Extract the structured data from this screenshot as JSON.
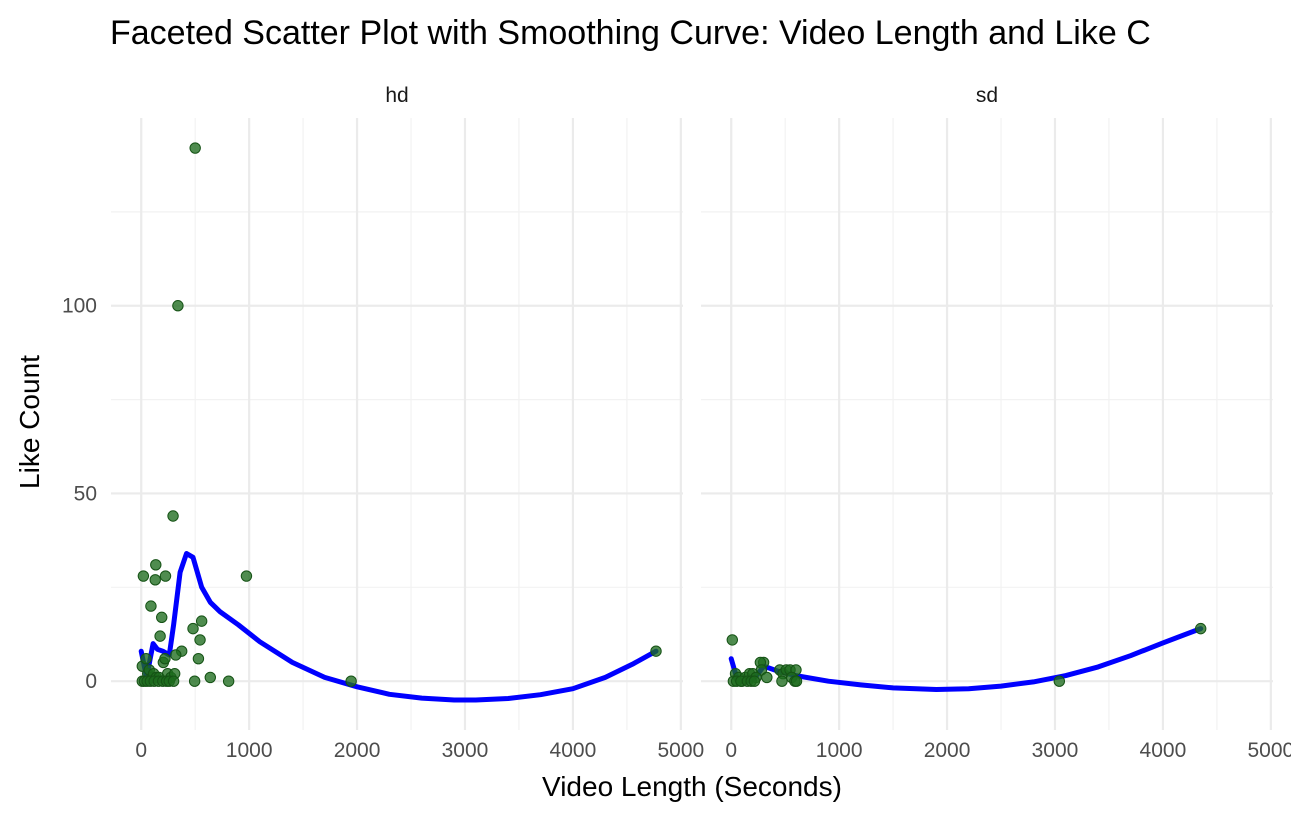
{
  "chart_data": {
    "type": "scatter",
    "title": "Faceted Scatter Plot with Smoothing Curve: Video Length and Like C",
    "xlabel": "Video Length (Seconds)",
    "ylabel": "Like Count",
    "xlim": [
      -280,
      5020
    ],
    "ylim": [
      -13,
      150
    ],
    "x_ticks": [
      0,
      1000,
      2000,
      3000,
      4000,
      5000
    ],
    "x_tick_labels": [
      "0",
      "1000",
      "2000",
      "3000",
      "4000",
      "5000"
    ],
    "y_ticks": [
      0,
      50,
      100
    ],
    "y_tick_labels": [
      "0",
      "50",
      "100"
    ],
    "grid": true,
    "colors": {
      "points": "#1e6b1e",
      "smooth": "#0000ff"
    },
    "facets": [
      {
        "label": "hd",
        "points": [
          [
            500,
            142
          ],
          [
            340,
            100
          ],
          [
            295,
            44
          ],
          [
            975,
            28
          ],
          [
            20,
            28
          ],
          [
            135,
            31
          ],
          [
            130,
            27
          ],
          [
            225,
            28
          ],
          [
            90,
            20
          ],
          [
            190,
            17
          ],
          [
            480,
            14
          ],
          [
            560,
            16
          ],
          [
            175,
            12
          ],
          [
            545,
            11
          ],
          [
            375,
            8
          ],
          [
            4770,
            8
          ],
          [
            10,
            4
          ],
          [
            45,
            6
          ],
          [
            60,
            2
          ],
          [
            75,
            3
          ],
          [
            100,
            1
          ],
          [
            115,
            2
          ],
          [
            140,
            1
          ],
          [
            165,
            1
          ],
          [
            205,
            5
          ],
          [
            220,
            6
          ],
          [
            245,
            2
          ],
          [
            275,
            1
          ],
          [
            310,
            2
          ],
          [
            320,
            7
          ],
          [
            530,
            6
          ],
          [
            640,
            1
          ],
          [
            10,
            0
          ],
          [
            30,
            0
          ],
          [
            55,
            0
          ],
          [
            85,
            0
          ],
          [
            120,
            0
          ],
          [
            160,
            0
          ],
          [
            200,
            0
          ],
          [
            235,
            0
          ],
          [
            260,
            0
          ],
          [
            300,
            0
          ],
          [
            495,
            0
          ],
          [
            810,
            0
          ],
          [
            1945,
            0
          ]
        ],
        "smooth": [
          [
            0,
            8
          ],
          [
            50,
            1
          ],
          [
            110,
            10
          ],
          [
            150,
            8.5
          ],
          [
            200,
            8
          ],
          [
            260,
            7
          ],
          [
            300,
            15
          ],
          [
            360,
            29
          ],
          [
            420,
            34
          ],
          [
            480,
            33
          ],
          [
            560,
            25
          ],
          [
            640,
            21
          ],
          [
            730,
            18.5
          ],
          [
            900,
            15
          ],
          [
            1100,
            10.5
          ],
          [
            1400,
            5
          ],
          [
            1700,
            1
          ],
          [
            2000,
            -1.5
          ],
          [
            2300,
            -3.5
          ],
          [
            2600,
            -4.5
          ],
          [
            2900,
            -5
          ],
          [
            3100,
            -5
          ],
          [
            3400,
            -4.6
          ],
          [
            3700,
            -3.6
          ],
          [
            4000,
            -2
          ],
          [
            4300,
            1
          ],
          [
            4550,
            4.5
          ],
          [
            4770,
            8
          ]
        ]
      },
      {
        "label": "sd",
        "points": [
          [
            10,
            11
          ],
          [
            4350,
            14
          ],
          [
            300,
            5
          ],
          [
            270,
            5
          ],
          [
            280,
            3
          ],
          [
            450,
            3
          ],
          [
            480,
            2
          ],
          [
            510,
            3
          ],
          [
            545,
            3
          ],
          [
            600,
            3
          ],
          [
            40,
            2
          ],
          [
            70,
            1
          ],
          [
            100,
            0
          ],
          [
            130,
            1
          ],
          [
            170,
            2
          ],
          [
            200,
            2
          ],
          [
            230,
            1
          ],
          [
            20,
            0
          ],
          [
            50,
            0
          ],
          [
            90,
            0
          ],
          [
            150,
            0
          ],
          [
            185,
            0
          ],
          [
            215,
            0
          ],
          [
            330,
            1
          ],
          [
            470,
            0
          ],
          [
            560,
            1
          ],
          [
            590,
            0
          ],
          [
            605,
            0
          ],
          [
            3040,
            0
          ]
        ],
        "smooth": [
          [
            0,
            6
          ],
          [
            50,
            1
          ],
          [
            90,
            0
          ],
          [
            150,
            0
          ],
          [
            200,
            0.5
          ],
          [
            250,
            2
          ],
          [
            300,
            4
          ],
          [
            350,
            3.5
          ],
          [
            450,
            2.5
          ],
          [
            600,
            1.5
          ],
          [
            900,
            0
          ],
          [
            1200,
            -1
          ],
          [
            1500,
            -1.8
          ],
          [
            1900,
            -2.2
          ],
          [
            2200,
            -2
          ],
          [
            2500,
            -1.3
          ],
          [
            2800,
            -0.2
          ],
          [
            3100,
            1.5
          ],
          [
            3400,
            3.8
          ],
          [
            3700,
            6.8
          ],
          [
            4000,
            10.2
          ],
          [
            4350,
            14
          ]
        ]
      }
    ]
  }
}
